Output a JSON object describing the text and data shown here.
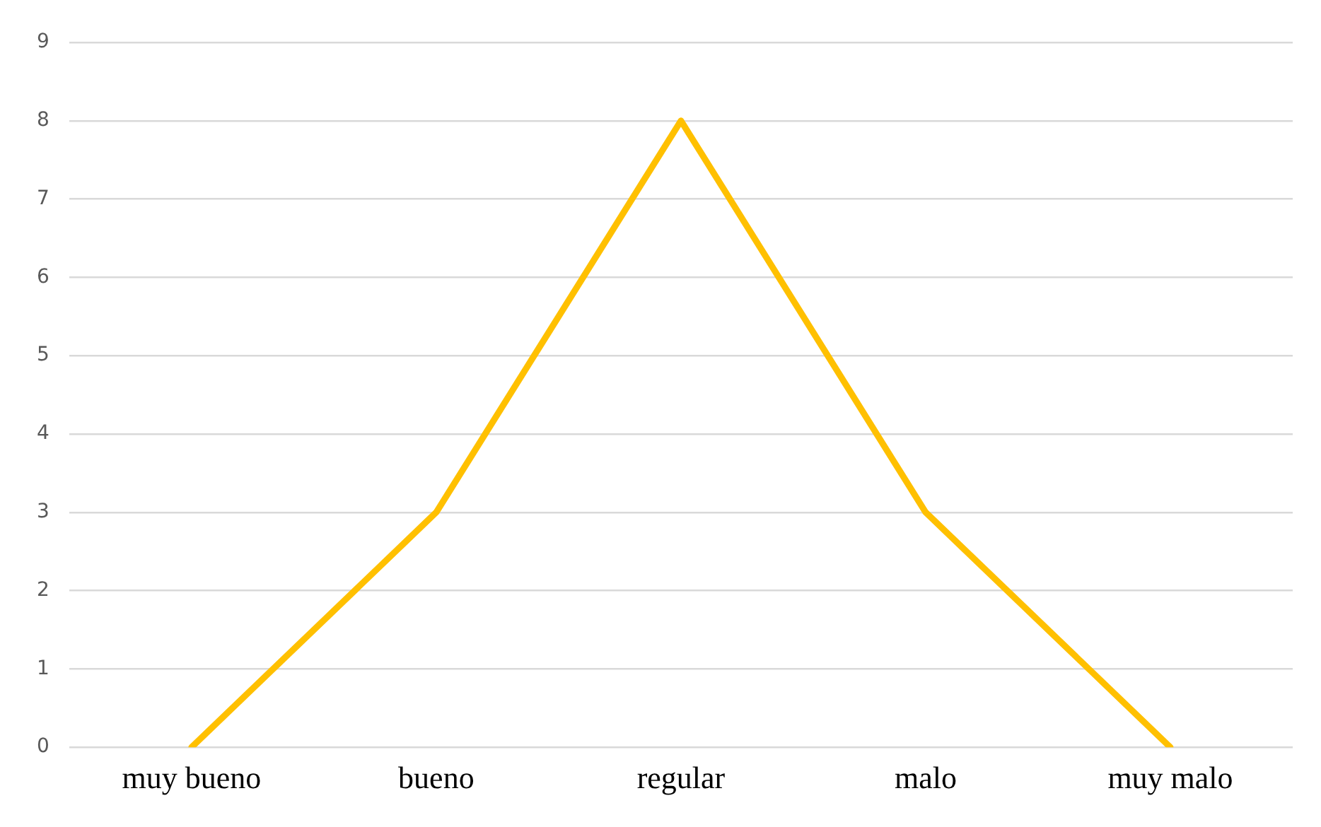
{
  "chart_data": {
    "type": "line",
    "categories": [
      "muy bueno",
      "bueno",
      "regular",
      "malo",
      "muy malo"
    ],
    "series": [
      {
        "color": "#ffc000",
        "values": [
          0,
          3,
          8,
          3,
          0
        ]
      }
    ],
    "ylim": [
      0,
      9
    ],
    "yticks": [
      0,
      1,
      2,
      3,
      4,
      5,
      6,
      7,
      8,
      9
    ],
    "grid": "y",
    "legend": false,
    "marker": "none",
    "line_style": "solid"
  }
}
